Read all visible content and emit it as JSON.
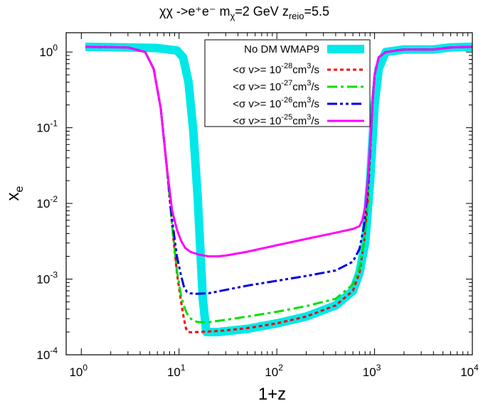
{
  "chart_data": {
    "type": "line",
    "title": {
      "process": "χχ ->e⁺e⁻",
      "mass_label": "m",
      "mass_sub": "χ",
      "mass_value": "=2 GeV",
      "z_label": "z",
      "z_sub": "reio",
      "z_value": "=5.5"
    },
    "xlabel": "1+z",
    "ylabel": {
      "base": "x",
      "sub": "e"
    },
    "xscale": "log",
    "yscale": "log",
    "xlim": [
      0.7,
      10000
    ],
    "ylim": [
      0.0001,
      1.8
    ],
    "x_ticks": [
      {
        "value": 1,
        "base": "10",
        "exp": "0"
      },
      {
        "value": 10,
        "base": "10",
        "exp": "1"
      },
      {
        "value": 100,
        "base": "10",
        "exp": "2"
      },
      {
        "value": 1000,
        "base": "10",
        "exp": "3"
      },
      {
        "value": 10000,
        "base": "10",
        "exp": "4"
      }
    ],
    "y_ticks": [
      {
        "value": 1,
        "base": "10",
        "exp": "0"
      },
      {
        "value": 0.1,
        "base": "10",
        "exp": "-1"
      },
      {
        "value": 0.01,
        "base": "10",
        "exp": "-2"
      },
      {
        "value": 0.001,
        "base": "10",
        "exp": "-3"
      },
      {
        "value": 0.0001,
        "base": "10",
        "exp": "-4"
      }
    ],
    "legend_position": "top-center",
    "series": [
      {
        "name": "No DM WMAP9",
        "legend": {
          "text": "No DM WMAP9",
          "exp": "",
          "tail": ""
        },
        "color": "#00e8e8",
        "style": "band",
        "width": 12,
        "x": [
          1.1,
          3.0,
          5.8,
          9.5,
          11,
          12.5,
          14,
          15.5,
          16.5,
          17.5,
          19,
          25,
          50,
          100,
          200,
          400,
          600,
          700,
          800,
          900,
          1000,
          1100,
          1300,
          2000,
          4000,
          6000,
          10000
        ],
        "y": [
          1.17,
          1.15,
          1.13,
          1.05,
          0.85,
          0.4,
          0.09,
          0.012,
          0.0025,
          0.00055,
          0.0002,
          0.0002,
          0.00022,
          0.00026,
          0.00032,
          0.00045,
          0.0007,
          0.0012,
          0.003,
          0.02,
          0.2,
          0.6,
          1.0,
          1.08,
          1.08,
          1.15,
          1.17
        ]
      },
      {
        "name": "<σ v>= 10-28cm3/s",
        "legend": {
          "text": "<σ v>= 10",
          "exp": "-28",
          "tail": "cm",
          "exp2": "3",
          "tail2": "/s"
        },
        "color": "#ff0000",
        "style": "dotted",
        "width": 3,
        "x": [
          1.1,
          3.0,
          4.5,
          5.5,
          6.5,
          7.5,
          8.5,
          9.5,
          10.5,
          11.2,
          11.8,
          12.5,
          13.5,
          15,
          20,
          30,
          50,
          100,
          200,
          400,
          600,
          700,
          780,
          850,
          900,
          950,
          1000,
          1100,
          1300,
          2000,
          4000,
          6000,
          10000
        ],
        "y": [
          1.17,
          1.15,
          1.0,
          0.6,
          0.18,
          0.03,
          0.005,
          0.0012,
          0.0005,
          0.0003,
          0.00022,
          0.0002,
          0.000198,
          0.0002,
          0.000203,
          0.00021,
          0.000225,
          0.00026,
          0.00032,
          0.00045,
          0.0007,
          0.0012,
          0.003,
          0.01,
          0.05,
          0.2,
          0.5,
          0.85,
          1.0,
          1.08,
          1.08,
          1.15,
          1.17
        ]
      },
      {
        "name": "<σ v>= 10-27cm3/s",
        "legend": {
          "text": "<σ v>= 10",
          "exp": "-27",
          "tail": "cm",
          "exp2": "3",
          "tail2": "/s"
        },
        "color": "#00e000",
        "style": "dashdot",
        "width": 3,
        "x": [
          1.1,
          3.0,
          4.5,
          5.5,
          6.5,
          7.5,
          8.5,
          9.5,
          10.5,
          11.5,
          12.5,
          14,
          16,
          20,
          30,
          50,
          100,
          200,
          400,
          600,
          700,
          780,
          850,
          900,
          950,
          1000,
          1100,
          1300,
          2000,
          4000,
          6000,
          10000
        ],
        "y": [
          1.17,
          1.15,
          1.0,
          0.6,
          0.18,
          0.03,
          0.005,
          0.0013,
          0.0006,
          0.0004,
          0.00032,
          0.00028,
          0.00027,
          0.00027,
          0.00029,
          0.00032,
          0.00037,
          0.00044,
          0.00055,
          0.00085,
          0.0014,
          0.003,
          0.01,
          0.05,
          0.2,
          0.5,
          0.85,
          1.0,
          1.08,
          1.08,
          1.15,
          1.17
        ]
      },
      {
        "name": "<σ v>= 10-26cm3/s",
        "legend": {
          "text": "<σ v>= 10",
          "exp": "-26",
          "tail": "cm",
          "exp2": "3",
          "tail2": "/s"
        },
        "color": "#0000e0",
        "style": "dashdotdot",
        "width": 3,
        "x": [
          1.1,
          3.0,
          4.5,
          5.5,
          6.5,
          7.5,
          8.5,
          9.5,
          10.5,
          11.2,
          12,
          13,
          15,
          20,
          30,
          50,
          100,
          200,
          400,
          600,
          700,
          780,
          850,
          900,
          950,
          1000,
          1100,
          1300,
          2000,
          4000,
          6000,
          10000
        ],
        "y": [
          1.17,
          1.15,
          1.0,
          0.6,
          0.18,
          0.03,
          0.006,
          0.002,
          0.0011,
          0.0008,
          0.00068,
          0.00065,
          0.00064,
          0.00065,
          0.00072,
          0.00082,
          0.00095,
          0.0011,
          0.0013,
          0.0017,
          0.0025,
          0.005,
          0.015,
          0.05,
          0.2,
          0.5,
          0.85,
          1.0,
          1.08,
          1.08,
          1.15,
          1.17
        ]
      },
      {
        "name": "<σ v>= 10-25cm3/s",
        "legend": {
          "text": "<σ v>= 10",
          "exp": "-25",
          "tail": "cm",
          "exp2": "3",
          "tail2": "/s"
        },
        "color": "#ff00ff",
        "style": "solid",
        "width": 3,
        "x": [
          1.1,
          3.0,
          4.5,
          5.5,
          6.5,
          7.5,
          8.5,
          9.5,
          10.5,
          11.5,
          13,
          16,
          20,
          25,
          30,
          50,
          100,
          200,
          400,
          600,
          700,
          750,
          800,
          850,
          900,
          950,
          1000,
          1100,
          1300,
          2000,
          4000,
          6000,
          10000
        ],
        "y": [
          1.17,
          1.15,
          1.0,
          0.6,
          0.18,
          0.03,
          0.008,
          0.0045,
          0.0032,
          0.0026,
          0.0023,
          0.0021,
          0.002,
          0.002,
          0.00205,
          0.0023,
          0.0028,
          0.0034,
          0.0041,
          0.0046,
          0.005,
          0.006,
          0.009,
          0.02,
          0.06,
          0.2,
          0.5,
          0.85,
          1.0,
          1.08,
          1.08,
          1.15,
          1.17
        ]
      }
    ]
  }
}
